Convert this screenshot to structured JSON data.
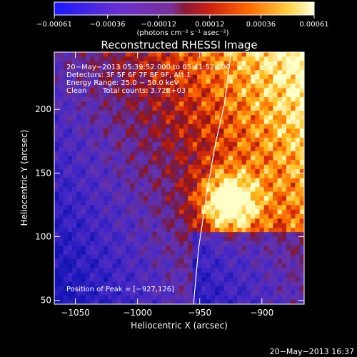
{
  "chart_data": {
    "type": "heatmap",
    "title": "Reconstructed RHESSI Image",
    "colorbar": {
      "ticks": [
        "-0.00061",
        "-0.00036",
        "-0.00012",
        "0.00012",
        "0.00036",
        "0.00061"
      ],
      "range": [
        -0.00061,
        0.00061
      ],
      "units_label": "(photons cm⁻² s⁻¹ asec⁻²)"
    },
    "xlabel": "Heliocentric X (arcsec)",
    "ylabel": "Heliocentric Y (arcsec)",
    "x_ticks": [
      -1050,
      -1000,
      -950,
      -900
    ],
    "y_ticks": [
      50,
      100,
      150,
      200
    ],
    "x_tick_labels": [
      "−1050",
      "−1000",
      "−950",
      "−900"
    ],
    "y_tick_labels": [
      "50",
      "100",
      "150",
      "200"
    ],
    "xlim": [
      -1067,
      -866
    ],
    "ylim": [
      47,
      245
    ],
    "annotations": {
      "time_range": "20−May−2013 05:39:52.000 to 05:41:52.000",
      "detectors": "Detectors: 3F 5F 6F 7F 8F 9F, Att 1",
      "energy": "Energy Range: 25.0 − 50.0 keV",
      "clean_label": "Clean",
      "counts": "Total counts: 3.72E+03",
      "peak": "Position of Peak = [−927,126]"
    },
    "peak": {
      "x": -927,
      "y": 126
    },
    "limb_points": [
      [
        -925,
        245
      ],
      [
        -930,
        205
      ],
      [
        -938,
        170
      ],
      [
        -945,
        130
      ],
      [
        -951,
        90
      ],
      [
        -955,
        47
      ]
    ],
    "footer": "20−May−2013 16:37"
  }
}
